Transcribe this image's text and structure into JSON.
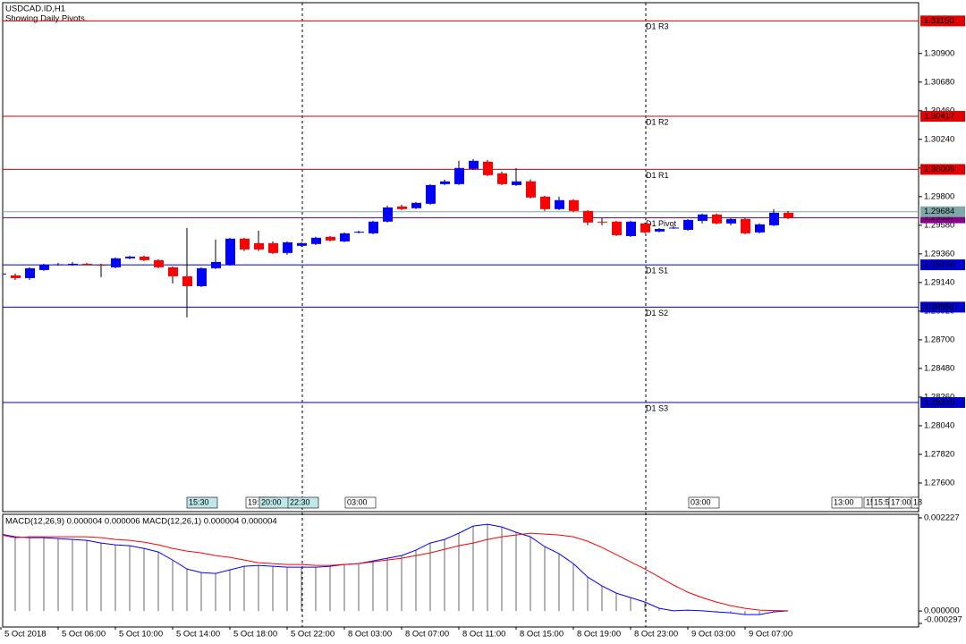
{
  "header": {
    "symbol": "USDCAD.ID,H1",
    "note": "Showing Daily Pivots."
  },
  "chart_data": [
    {
      "type": "candlestick",
      "categories": [
        "5 Oct 2018",
        null,
        null,
        null,
        "5 Oct 06:00",
        null,
        null,
        null,
        "5 Oct 10:00",
        null,
        null,
        null,
        "5 Oct 14:00",
        null,
        null,
        null,
        "5 Oct 18:00",
        null,
        null,
        null,
        "5 Oct 22:00",
        null,
        null,
        null,
        "8 Oct 03:00",
        null,
        null,
        null,
        "8 Oct 07:00",
        null,
        null,
        null,
        "8 Oct 11:00",
        null,
        null,
        null,
        "8 Oct 15:00",
        null,
        null,
        null,
        "8 Oct 19:00",
        null,
        null,
        null,
        "8 Oct 23:00",
        null,
        null,
        null,
        "9 Oct 03:00",
        null,
        null,
        null,
        "9 Oct 07:00",
        null,
        null,
        null
      ],
      "open": [
        1.29202,
        1.29195,
        1.29174,
        1.29236,
        1.29277,
        1.29277,
        1.29284,
        1.29277,
        1.29257,
        1.29326,
        1.29339,
        1.29312,
        1.29257,
        1.29188,
        1.29112,
        1.2925,
        1.29277,
        1.29477,
        1.29443,
        1.29443,
        1.29367,
        1.29422,
        1.29436,
        1.29491,
        1.29456,
        1.29525,
        1.29518,
        1.29608,
        1.29724,
        1.29711,
        1.29745,
        1.29896,
        1.29896,
        1.30013,
        1.30068,
        1.29979,
        1.29889,
        1.29917,
        1.298,
        1.29704,
        1.29773,
        1.2969,
        1.29608,
        1.29608,
        1.29497,
        1.29594,
        1.29532,
        1.29559,
        1.29545,
        1.29614,
        1.29663,
        1.29594,
        1.29628,
        1.29525,
        1.2958,
        1.29676
      ],
      "high": [
        1.29216,
        1.29209,
        1.29257,
        1.29284,
        1.29291,
        1.29298,
        1.29291,
        1.29284,
        1.29333,
        1.29346,
        1.29346,
        1.29319,
        1.29264,
        1.29559,
        1.29257,
        1.2947,
        1.29484,
        1.29484,
        1.29539,
        1.29456,
        1.29456,
        1.29449,
        1.29491,
        1.29498,
        1.29525,
        1.29539,
        1.29614,
        1.29731,
        1.29738,
        1.29759,
        1.29896,
        1.29931,
        1.30075,
        1.30089,
        1.30082,
        1.29993,
        1.3002,
        1.29931,
        1.29807,
        1.298,
        1.2978,
        1.29697,
        1.29635,
        1.29614,
        1.29614,
        1.29601,
        1.29559,
        1.29573,
        1.29628,
        1.2967,
        1.2967,
        1.29635,
        1.29635,
        1.29594,
        1.29704,
        1.2969
      ],
      "low": [
        1.29195,
        1.2916,
        1.2916,
        1.29229,
        1.2927,
        1.2927,
        1.29277,
        1.29181,
        1.2925,
        1.29319,
        1.29305,
        1.2925,
        1.29133,
        1.28872,
        1.29105,
        1.29243,
        1.2927,
        1.29381,
        1.29381,
        1.2936,
        1.29353,
        1.29415,
        1.29429,
        1.29456,
        1.29449,
        1.29518,
        1.29511,
        1.29601,
        1.29697,
        1.29704,
        1.29738,
        1.29889,
        1.29889,
        1.30006,
        1.29958,
        1.29889,
        1.29882,
        1.29786,
        1.2969,
        1.29697,
        1.29683,
        1.2958,
        1.2958,
        1.29497,
        1.2949,
        1.29518,
        1.29525,
        1.29552,
        1.29538,
        1.29594,
        1.29587,
        1.2958,
        1.29511,
        1.29518,
        1.29573,
        1.29628
      ],
      "close": [
        1.29209,
        1.29174,
        1.2925,
        1.29277,
        1.2928,
        1.29284,
        1.29281,
        1.29271,
        1.29326,
        1.29339,
        1.29312,
        1.29257,
        1.29188,
        1.29112,
        1.2925,
        1.29298,
        1.29477,
        1.29394,
        1.29394,
        1.29367,
        1.29449,
        1.29443,
        1.29484,
        1.29463,
        1.29518,
        1.2953,
        1.29608,
        1.29717,
        1.29704,
        1.29752,
        1.29889,
        1.29917,
        1.3002,
        1.30075,
        1.29965,
        1.29896,
        1.29917,
        1.29793,
        1.29704,
        1.29773,
        1.2969,
        1.29601,
        1.29605,
        1.29504,
        1.29608,
        1.29525,
        1.29552,
        1.29562,
        1.29621,
        1.29663,
        1.29594,
        1.29628,
        1.29518,
        1.29587,
        1.29676,
        1.29635
      ],
      "up_color": "#0000ff",
      "down_color": "#ff0000",
      "wick_color": "#000000",
      "ylim": [
        1.2738,
        1.3129
      ],
      "yticks": [
        {
          "value": 1.309,
          "label": "1.30900"
        },
        {
          "value": 1.3068,
          "label": "1.30680"
        },
        {
          "value": 1.3046,
          "label": "1.30460"
        },
        {
          "value": 1.3024,
          "label": "1.30240"
        },
        {
          "value": 1.3002,
          "label": "1.30020"
        },
        {
          "value": 1.298,
          "label": "1.29800"
        },
        {
          "value": 1.2958,
          "label": "1.29580"
        },
        {
          "value": 1.2936,
          "label": "1.29360"
        },
        {
          "value": 1.2914,
          "label": "1.29140"
        },
        {
          "value": 1.2892,
          "label": "1.28920"
        },
        {
          "value": 1.287,
          "label": "1.28700"
        },
        {
          "value": 1.2848,
          "label": "1.28480"
        },
        {
          "value": 1.2826,
          "label": "1.28260"
        },
        {
          "value": 1.2804,
          "label": "1.28040"
        },
        {
          "value": 1.2782,
          "label": "1.27820"
        },
        {
          "value": 1.276,
          "label": "1.27600"
        }
      ],
      "pivots": [
        {
          "name": "D1 R3",
          "value": 1.3115,
          "label": "1.31150",
          "color": "#e00000"
        },
        {
          "name": "D1 R2",
          "value": 1.30417,
          "label": "1.30417",
          "color": "#e00000"
        },
        {
          "name": "D1 R1",
          "value": 1.30009,
          "label": "1.30009",
          "color": "#e00000"
        },
        {
          "name": "D1 Pivot",
          "value": 1.29637,
          "label": "1.29637",
          "color": "#8b008b"
        },
        {
          "name": "D1 S1",
          "value": 1.29276,
          "label": "1.29276",
          "color": "#0000c8"
        },
        {
          "name": "D1 S2",
          "value": 1.28951,
          "label": "1.28951",
          "color": "#0000c8"
        },
        {
          "name": "D1 S3",
          "value": 1.28218,
          "label": "1.28218",
          "color": "#0000c8"
        }
      ],
      "bid": {
        "value": 1.29684,
        "label": "1.29684",
        "color": "#7fa9a9"
      },
      "time_markers": [
        "15:30",
        "19:",
        "20:00",
        "22:30",
        "03:00",
        "03:00",
        "13:00",
        "15",
        "15:5",
        "17:00",
        "18"
      ]
    },
    {
      "type": "macd",
      "title": "MACD(12,26,9) 0.000004 0.000006 MACD(12,26,1) 0.000004 0.000004",
      "histogram": [
        0.00184,
        0.001775,
        0.001754,
        0.001754,
        0.001733,
        0.001711,
        0.00169,
        0.001626,
        0.001583,
        0.001561,
        0.001497,
        0.001412,
        0.001219,
        0.001005,
        0.00092,
        0.000898,
        0.000984,
        0.00107,
        0.001091,
        0.00107,
        0.001048,
        0.001048,
        0.001048,
        0.00107,
        0.001112,
        0.001134,
        0.001198,
        0.001262,
        0.001326,
        0.001455,
        0.001626,
        0.001711,
        0.001861,
        0.002032,
        0.002075,
        0.002011,
        0.001882,
        0.001775,
        0.00154,
        0.001369,
        0.001134,
        0.000813,
        0.000599,
        0.000428,
        0.000321,
        0.000214,
        6.4e-05,
        6e-06,
        2.1e-05,
        4e-06,
        -2.1e-05,
        -4.3e-05,
        -8.6e-05,
        -8.6e-05,
        -2.1e-05,
        4e-06
      ],
      "signal": [
        0.001818,
        0.001754,
        0.001775,
        0.001775,
        0.001775,
        0.001775,
        0.001775,
        0.001754,
        0.001711,
        0.00169,
        0.001647,
        0.001583,
        0.001497,
        0.001433,
        0.00139,
        0.001326,
        0.001283,
        0.001219,
        0.001155,
        0.001134,
        0.001112,
        0.001112,
        0.001091,
        0.001091,
        0.001112,
        0.001134,
        0.001176,
        0.001219,
        0.001262,
        0.001326,
        0.00139,
        0.001476,
        0.001561,
        0.001626,
        0.001711,
        0.001775,
        0.001818,
        0.001861,
        0.00184,
        0.001818,
        0.001775,
        0.001668,
        0.001519,
        0.001348,
        0.001176,
        0.001005,
        0.000813,
        0.00062,
        0.000449,
        0.000321,
        0.000214,
        0.000128,
        6.4e-05,
        2.1e-05,
        1e-05,
        6e-06
      ],
      "histogram_color": "#404040",
      "line_color": "#0000ff",
      "signal_color": "#ff0000",
      "ylim": [
        -0.000297,
        0.002227
      ],
      "yticks": [
        {
          "value": 0.002227,
          "label": "0.002227"
        },
        {
          "value": 0,
          "label": "0.000000"
        },
        {
          "value": -0.000297,
          "label": "-0.000297"
        }
      ]
    }
  ]
}
